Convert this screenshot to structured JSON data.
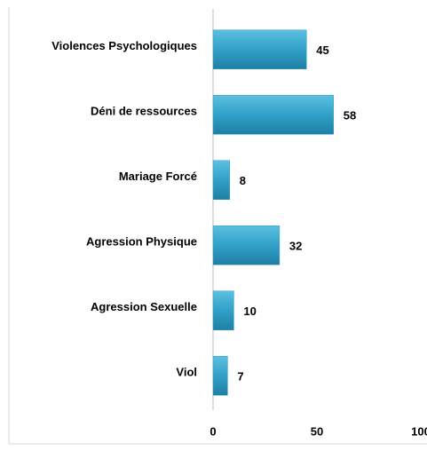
{
  "chart_data": {
    "type": "bar",
    "orientation": "horizontal",
    "categories": [
      "Violences Psychologiques",
      "Déni de ressources",
      "Mariage Forcé",
      "Agression Physique",
      "Agression Sexuelle",
      "Viol"
    ],
    "values": [
      45,
      58,
      8,
      32,
      10,
      7
    ],
    "color": "#31a0c8",
    "xlim": [
      0,
      100
    ],
    "xticks": [
      0,
      50,
      100
    ],
    "grid": false
  }
}
